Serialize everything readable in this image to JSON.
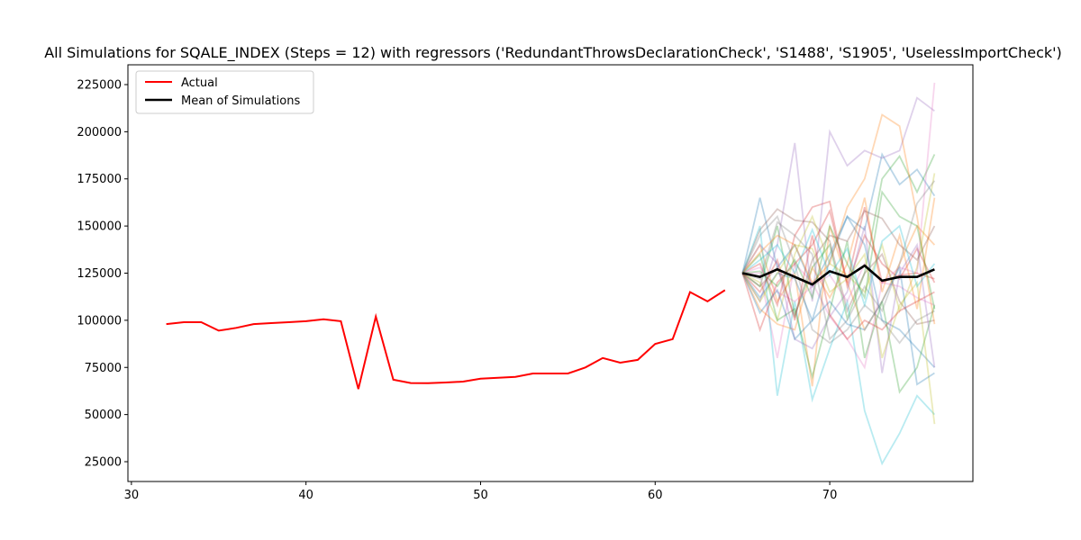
{
  "chart_data": {
    "type": "line",
    "title": "All Simulations for SQALE_INDEX (Steps = 12) with regressors ('RedundantThrowsDeclarationCheck', 'S1488', 'S1905', 'UselessImportCheck')",
    "xlabel": "",
    "ylabel": "",
    "xlim": [
      29.8,
      78.2
    ],
    "ylim": [
      14500,
      235500
    ],
    "x_ticks": [
      30,
      40,
      50,
      60,
      70
    ],
    "y_ticks": [
      25000,
      50000,
      75000,
      100000,
      125000,
      150000,
      175000,
      200000,
      225000
    ],
    "grid": false,
    "legend_position": "top-left",
    "legend": [
      {
        "label": "Actual",
        "color": "#ff0000"
      },
      {
        "label": "Mean of Simulations",
        "color": "#000000"
      }
    ],
    "actual": {
      "name": "Actual",
      "color": "#ff0000",
      "x": [
        32,
        33,
        34,
        35,
        36,
        37,
        38,
        39,
        40,
        41,
        42,
        43,
        44,
        45,
        46,
        47,
        48,
        49,
        50,
        51,
        52,
        53,
        54,
        55,
        56,
        57,
        58,
        59,
        60,
        61,
        62,
        63,
        64
      ],
      "y": [
        98000,
        99000,
        99000,
        94500,
        96000,
        98000,
        98500,
        99000,
        99500,
        100500,
        99500,
        63500,
        102000,
        68500,
        66700,
        66600,
        67000,
        67500,
        69000,
        69500,
        70000,
        71800,
        71800,
        71800,
        75000,
        80000,
        77500,
        79000,
        87500,
        90000,
        115000,
        110000,
        116000
      ]
    },
    "mean": {
      "name": "Mean of Simulations",
      "color": "#000000",
      "x": [
        65,
        66,
        67,
        68,
        69,
        70,
        71,
        72,
        73,
        74,
        75,
        76
      ],
      "y": [
        125000,
        123000,
        127000,
        123000,
        119000,
        126000,
        123000,
        129000,
        121000,
        123000,
        123000,
        127000
      ]
    },
    "simulations": {
      "x": [
        65,
        66,
        67,
        68,
        69,
        70,
        71,
        72,
        73,
        74,
        75,
        76
      ],
      "colors": [
        "#1f77b4",
        "#ff7f0e",
        "#2ca02c",
        "#d62728",
        "#9467bd",
        "#8c564b",
        "#e377c2",
        "#7f7f7f",
        "#bcbd22",
        "#17becf"
      ],
      "series": [
        [
          125000,
          165000,
          128000,
          140000,
          118000,
          135000,
          155000,
          148000,
          188000,
          172000,
          180000,
          166000
        ],
        [
          125000,
          140000,
          110000,
          125000,
          65000,
          150000,
          120000,
          95000,
          110000,
          130000,
          150000,
          140000
        ],
        [
          125000,
          118000,
          150000,
          103000,
          128000,
          140000,
          101000,
          125000,
          175000,
          187000,
          168000,
          188000
        ],
        [
          125000,
          130000,
          108000,
          145000,
          160000,
          163000,
          118000,
          145000,
          130000,
          122000,
          138000,
          120000
        ],
        [
          125000,
          110000,
          140000,
          194000,
          110000,
          200000,
          182000,
          190000,
          186000,
          190000,
          218000,
          211000
        ],
        [
          125000,
          148000,
          159000,
          153000,
          152000,
          142000,
          105000,
          125000,
          135000,
          110000,
          98000,
          100000
        ],
        [
          125000,
          125000,
          80000,
          130000,
          120000,
          102000,
          90000,
          75000,
          120000,
          128000,
          125000,
          226000
        ],
        [
          125000,
          145000,
          155000,
          130000,
          95000,
          88000,
          95000,
          108000,
          100000,
          88000,
          100000,
          105000
        ],
        [
          125000,
          120000,
          100000,
          135000,
          155000,
          130000,
          124000,
          115000,
          140000,
          105000,
          128000,
          178000
        ],
        [
          125000,
          150000,
          60000,
          110000,
          58000,
          85000,
          110000,
          52000,
          24000,
          40000,
          60000,
          50000
        ],
        [
          125000,
          112000,
          125000,
          122000,
          100000,
          132000,
          155000,
          140000,
          100000,
          95000,
          85000,
          75000
        ],
        [
          125000,
          106000,
          98000,
          95000,
          128000,
          112000,
          130000,
          165000,
          115000,
          145000,
          106000,
          165000
        ],
        [
          125000,
          135000,
          100000,
          106000,
          70000,
          105000,
          142000,
          80000,
          110000,
          62000,
          75000,
          108000
        ],
        [
          125000,
          95000,
          120000,
          130000,
          140000,
          158000,
          120000,
          160000,
          120000,
          124000,
          125000,
          122000
        ],
        [
          125000,
          140000,
          130000,
          90000,
          85000,
          102000,
          115000,
          150000,
          72000,
          125000,
          140000,
          75000
        ],
        [
          125000,
          118000,
          128000,
          102000,
          132000,
          145000,
          142000,
          158000,
          154000,
          140000,
          132000,
          150000
        ],
        [
          125000,
          128000,
          115000,
          110000,
          118000,
          124000,
          110000,
          130000,
          120000,
          118000,
          112000,
          108000
        ],
        [
          125000,
          122000,
          152000,
          145000,
          135000,
          90000,
          100000,
          118000,
          105000,
          130000,
          162000,
          174000
        ],
        [
          125000,
          110000,
          125000,
          140000,
          138000,
          115000,
          122000,
          135000,
          80000,
          108000,
          120000,
          45000
        ],
        [
          125000,
          132000,
          140000,
          125000,
          148000,
          124000,
          138000,
          108000,
          142000,
          150000,
          118000,
          130000
        ],
        [
          125000,
          104000,
          116000,
          90000,
          100000,
          110000,
          98000,
          95000,
          110000,
          128000,
          66000,
          72000
        ],
        [
          125000,
          136000,
          145000,
          140000,
          120000,
          130000,
          160000,
          175000,
          209000,
          203000,
          155000,
          98000
        ],
        [
          125000,
          126000,
          118000,
          132000,
          112000,
          150000,
          130000,
          112000,
          168000,
          155000,
          150000,
          106000
        ],
        [
          125000,
          115000,
          132000,
          100000,
          145000,
          103000,
          90000,
          100000,
          95000,
          105000,
          110000,
          115000
        ]
      ]
    }
  }
}
